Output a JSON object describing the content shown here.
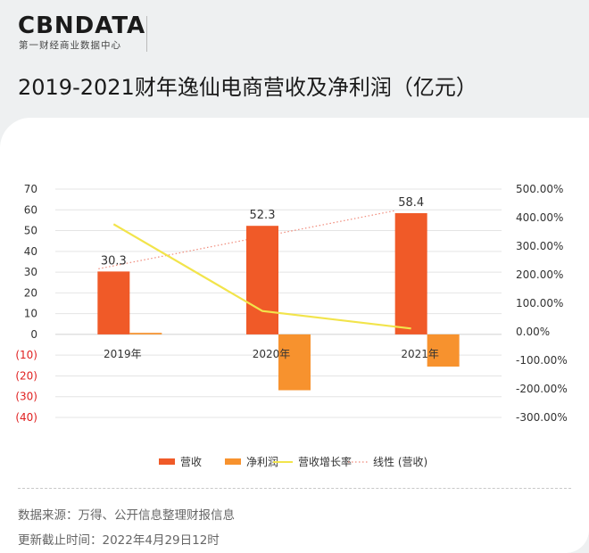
{
  "brand": {
    "name": "CBNDATA",
    "subtitle": "第一财经商业数据中心"
  },
  "title": "2019-2021财年逸仙电商营收及净利润（亿元）",
  "chart_data": {
    "type": "bar",
    "categories": [
      "2019年",
      "2020年",
      "2021年"
    ],
    "series": [
      {
        "name": "营收",
        "type": "bar",
        "axis": "left",
        "color": "#f05a28",
        "values": [
          30.3,
          52.3,
          58.4
        ],
        "labels": [
          "30.3",
          "52.3",
          "58.4"
        ]
      },
      {
        "name": "净利润",
        "type": "bar",
        "axis": "left",
        "color": "#f7922e",
        "values": [
          0.75,
          -26.9,
          -15.5
        ]
      },
      {
        "name": "营收增长率",
        "type": "line",
        "axis": "right",
        "color": "#f2e44b",
        "values": [
          377,
          72.7,
          11.6
        ]
      },
      {
        "name": "线性 (营收)",
        "type": "trendline",
        "axis": "left",
        "color": "#f08a7a",
        "values": [
          31.6,
          45.65,
          59.7
        ]
      }
    ],
    "y_left": {
      "ticks": [
        "70",
        "60",
        "50",
        "40",
        "30",
        "20",
        "10",
        "0",
        "(10)",
        "(20)",
        "(30)",
        "(40)"
      ],
      "min": -40,
      "max": 70
    },
    "y_right": {
      "ticks": [
        "500.00%",
        "400.00%",
        "300.00%",
        "200.00%",
        "100.00%",
        "0.00%",
        "-100.00%",
        "-200.00%",
        "-300.00%"
      ],
      "min": -300,
      "max": 500
    },
    "grid": true,
    "legend_position": "bottom",
    "legend": [
      "营收",
      "净利润",
      "营收增长率",
      "线性 (营收)"
    ]
  },
  "footer": {
    "source": "数据来源：万得、公开信息整理财报信息",
    "updated": "更新截止时间：2022年4月29日12时"
  }
}
